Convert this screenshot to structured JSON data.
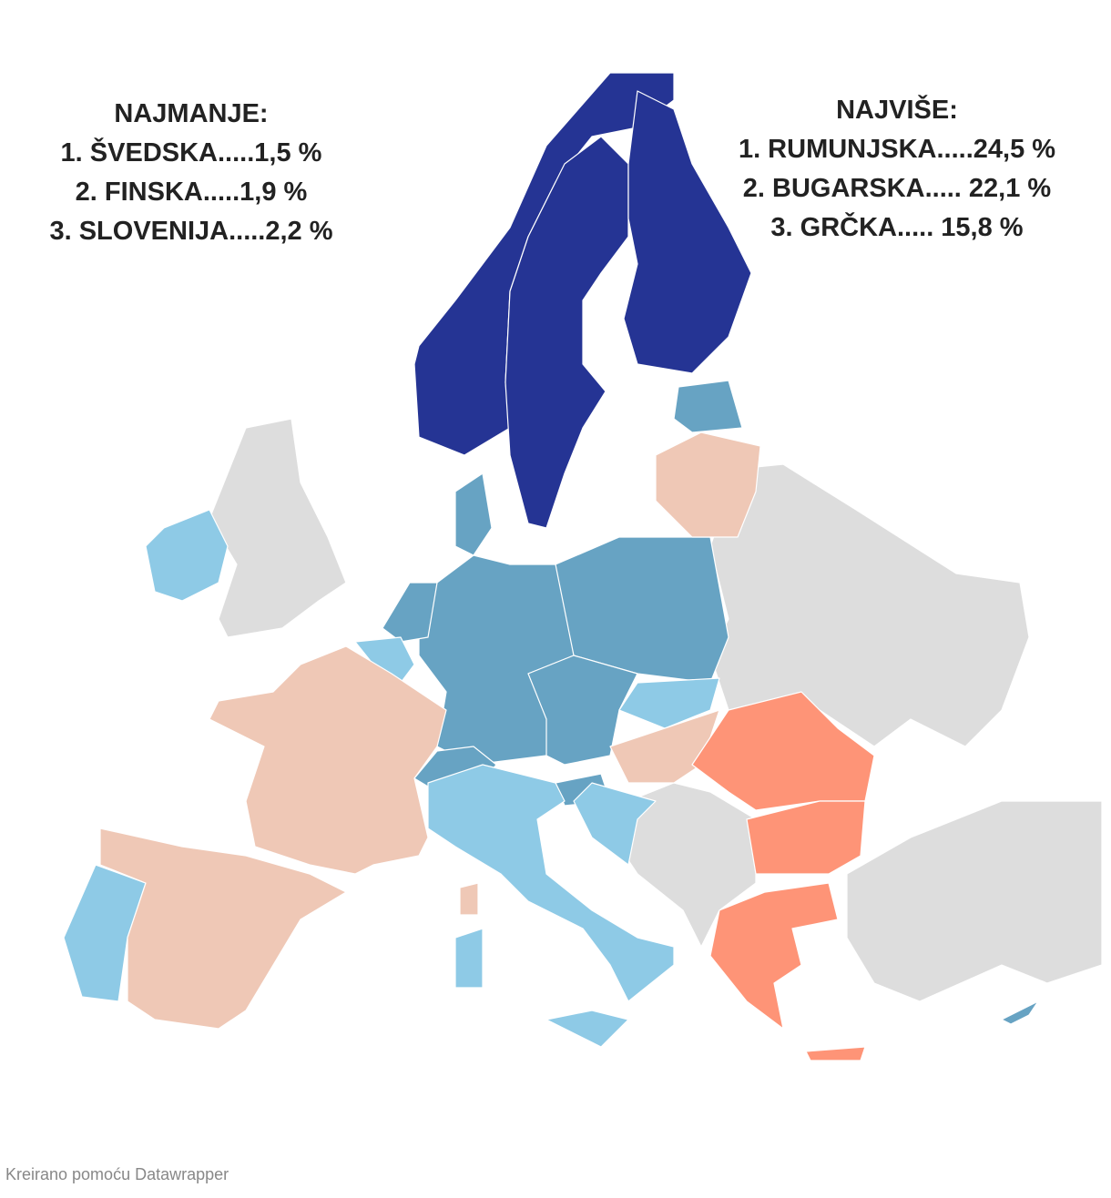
{
  "left_note": {
    "heading": "NAJMANJE:",
    "lines": [
      "1. ŠVEDSKA.....1,5 %",
      "2. FINSKA.....1,9 %",
      "3. SLOVENIJA.....2,2 %"
    ]
  },
  "right_note": {
    "heading": "NAJVIŠE:",
    "lines": [
      "1. RUMUNJSKA.....24,5 %",
      "2. BUGARSKA..... 22,1 %",
      "3. GRČKA..... 15,8 %"
    ]
  },
  "footer": "Kreirano pomoću Datawrapper"
}
